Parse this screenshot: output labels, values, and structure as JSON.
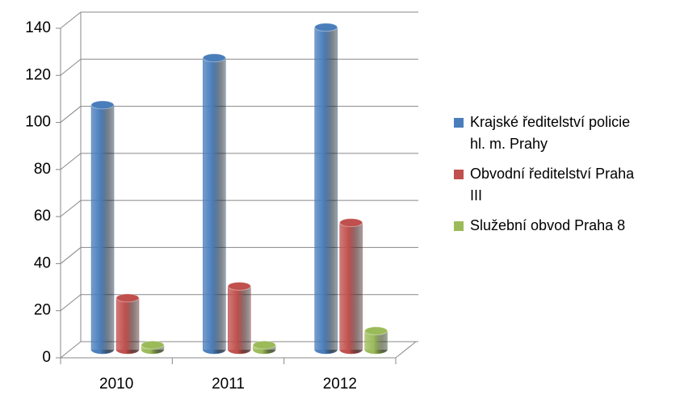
{
  "chart_data": {
    "type": "bar3d",
    "categories": [
      "2010",
      "2011",
      "2012"
    ],
    "series": [
      {
        "name": "Krajské ředitelství policie hl. m. Prahy",
        "color": "#4a7ebb",
        "values": [
          104,
          124,
          137
        ]
      },
      {
        "name": "Obvodní ředitelství Praha III",
        "color": "#c0504d",
        "values": [
          22,
          27,
          54
        ]
      },
      {
        "name": "Služební obvod Praha 8",
        "color": "#9bbb59",
        "values": [
          2,
          2,
          8
        ]
      }
    ],
    "ylim": [
      0,
      140
    ],
    "yticks": [
      0,
      20,
      40,
      60,
      80,
      100,
      120,
      140
    ],
    "grid": true,
    "legend": "right"
  }
}
